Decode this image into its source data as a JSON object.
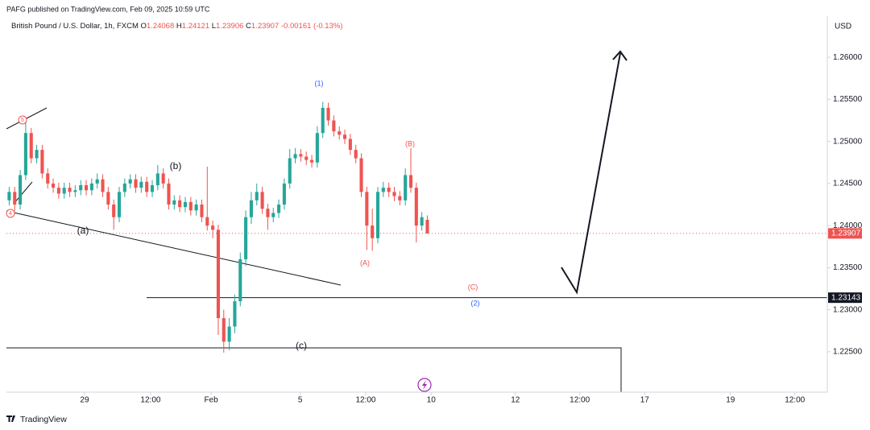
{
  "chart_data": {
    "type": "candlestick",
    "published": "PAFG published on TradingView.com, Feb 09, 2025 10:59 UTC",
    "symbol": "British Pound / U.S. Dollar, 1h, FXCM",
    "ohlc_letters": [
      "O",
      "H",
      "L",
      "C"
    ],
    "change_label": "-0.00161 (-0.13%)",
    "currency": "USD",
    "brand": "TradingView",
    "annotations": [
      "(1)",
      "(2)",
      "(A)",
      "(B)",
      "(C)",
      "(a)",
      "(b)",
      "(c)",
      "5",
      "4"
    ],
    "up_color": "#26a69a",
    "down_color": "#ef5350",
    "x": [
      0,
      1,
      2,
      3,
      4,
      5,
      6,
      7,
      8,
      9,
      10,
      11,
      12,
      13,
      14,
      15,
      16,
      17,
      18,
      19,
      20,
      21,
      22,
      23,
      24,
      25,
      26,
      27,
      28,
      29,
      30,
      31,
      32,
      33,
      34,
      35,
      36,
      37,
      38,
      39,
      40,
      41,
      42,
      43,
      44,
      45,
      46,
      47,
      48,
      49,
      50,
      51,
      52,
      53,
      54,
      55,
      56,
      57,
      58,
      59,
      60,
      61,
      62,
      63,
      64,
      65,
      66,
      67,
      68,
      69,
      70,
      71,
      72,
      73,
      74,
      75,
      76
    ],
    "open": [
      1.243,
      1.244,
      1.2425,
      1.246,
      1.251,
      1.248,
      1.249,
      1.2462,
      1.245,
      1.2445,
      1.2438,
      1.2445,
      1.244,
      1.2442,
      1.2448,
      1.2442,
      1.245,
      1.2455,
      1.244,
      1.2425,
      1.241,
      1.244,
      1.245,
      1.2455,
      1.2445,
      1.2452,
      1.244,
      1.2448,
      1.2462,
      1.245,
      1.2425,
      1.243,
      1.2422,
      1.2428,
      1.2418,
      1.2425,
      1.241,
      1.24,
      1.2395,
      1.229,
      1.2262,
      1.228,
      1.231,
      1.236,
      1.241,
      1.243,
      1.244,
      1.242,
      1.241,
      1.2415,
      1.2425,
      1.245,
      1.248,
      1.2485,
      1.2482,
      1.2478,
      1.2475,
      1.251,
      1.254,
      1.2525,
      1.2512,
      1.2508,
      1.2503,
      1.249,
      1.248,
      1.244,
      1.24,
      1.2385,
      1.244,
      1.2445,
      1.244,
      1.2435,
      1.243,
      1.246,
      1.2445,
      1.24,
      1.24068
    ],
    "high": [
      1.2446,
      1.2446,
      1.2466,
      1.2525,
      1.2516,
      1.2496,
      1.2496,
      1.2468,
      1.2456,
      1.2451,
      1.2451,
      1.2451,
      1.2448,
      1.2454,
      1.2454,
      1.2456,
      1.2462,
      1.2461,
      1.2446,
      1.2431,
      1.2446,
      1.2456,
      1.2461,
      1.2461,
      1.2458,
      1.2458,
      1.2454,
      1.2472,
      1.2468,
      1.2456,
      1.2436,
      1.2436,
      1.2434,
      1.2434,
      1.2431,
      1.2431,
      1.247,
      1.2406,
      1.2401,
      1.23,
      1.229,
      1.2318,
      1.2368,
      1.2418,
      1.244,
      1.245,
      1.2446,
      1.2426,
      1.2421,
      1.2431,
      1.2456,
      1.2491,
      1.2492,
      1.2491,
      1.2488,
      1.2484,
      1.2518,
      1.2547,
      1.2546,
      1.2531,
      1.2518,
      1.2514,
      1.2509,
      1.2496,
      1.2486,
      1.2446,
      1.242,
      1.2446,
      1.2452,
      1.2451,
      1.2446,
      1.2441,
      1.2468,
      1.2492,
      1.2451,
      1.2416,
      1.24121
    ],
    "low": [
      1.2424,
      1.2417,
      1.2419,
      1.2454,
      1.2474,
      1.2474,
      1.2456,
      1.2444,
      1.2439,
      1.2432,
      1.2432,
      1.2434,
      1.2434,
      1.2436,
      1.2436,
      1.2436,
      1.2444,
      1.2434,
      1.2419,
      1.2395,
      1.2404,
      1.2434,
      1.2444,
      1.2439,
      1.2439,
      1.2434,
      1.2434,
      1.2442,
      1.2444,
      1.2419,
      1.2419,
      1.2416,
      1.2416,
      1.2412,
      1.2412,
      1.2404,
      1.2394,
      1.2385,
      1.227,
      1.2249,
      1.2252,
      1.2272,
      1.2304,
      1.2352,
      1.2402,
      1.2424,
      1.2414,
      1.2395,
      1.2404,
      1.2409,
      1.2419,
      1.2444,
      1.2474,
      1.2476,
      1.2472,
      1.2469,
      1.2469,
      1.2504,
      1.2519,
      1.2506,
      1.2502,
      1.2497,
      1.2484,
      1.2474,
      1.2434,
      1.2371,
      1.237,
      1.2379,
      1.2434,
      1.2434,
      1.2429,
      1.2424,
      1.2424,
      1.2439,
      1.238,
      1.2394,
      1.23906
    ],
    "close": [
      1.244,
      1.2425,
      1.246,
      1.251,
      1.248,
      1.249,
      1.2462,
      1.245,
      1.2445,
      1.2438,
      1.2445,
      1.244,
      1.2442,
      1.2448,
      1.2442,
      1.245,
      1.2455,
      1.244,
      1.2425,
      1.241,
      1.244,
      1.245,
      1.2455,
      1.2445,
      1.2452,
      1.244,
      1.2448,
      1.2462,
      1.245,
      1.2425,
      1.243,
      1.2422,
      1.2428,
      1.2418,
      1.2425,
      1.241,
      1.24,
      1.2395,
      1.229,
      1.2262,
      1.228,
      1.231,
      1.236,
      1.241,
      1.243,
      1.244,
      1.242,
      1.241,
      1.2415,
      1.2425,
      1.245,
      1.248,
      1.2485,
      1.2482,
      1.2478,
      1.2475,
      1.251,
      1.254,
      1.2525,
      1.2512,
      1.2508,
      1.2503,
      1.249,
      1.248,
      1.244,
      1.24,
      1.2385,
      1.244,
      1.2445,
      1.244,
      1.2435,
      1.243,
      1.246,
      1.2445,
      1.24,
      1.241,
      1.23907
    ],
    "xlim": [
      -0.5,
      148.7
    ],
    "xticks": [
      {
        "value": 13.7,
        "label": "29"
      },
      {
        "value": 25.7,
        "label": "12:00"
      },
      {
        "value": 36.7,
        "label": "Feb"
      },
      {
        "value": 52.9,
        "label": "5"
      },
      {
        "value": 64.8,
        "label": "12:00"
      },
      {
        "value": 76.7,
        "label": "10"
      },
      {
        "value": 92.0,
        "label": "12"
      },
      {
        "value": 103.7,
        "label": "12:00"
      },
      {
        "value": 115.5,
        "label": "17"
      },
      {
        "value": 131.1,
        "label": "19"
      },
      {
        "value": 142.8,
        "label": "12:00"
      }
    ],
    "ylim": [
      1.2202,
      1.2649
    ],
    "yticks": [
      {
        "value": 1.225,
        "label": "1.22500"
      },
      {
        "value": 1.23,
        "label": "1.23000"
      },
      {
        "value": 1.235,
        "label": "1.23500"
      },
      {
        "value": 1.24,
        "label": "1.24000"
      },
      {
        "value": 1.245,
        "label": "1.24500"
      },
      {
        "value": 1.25,
        "label": "1.25000"
      },
      {
        "value": 1.255,
        "label": "1.25500"
      },
      {
        "value": 1.26,
        "label": "1.26000"
      }
    ],
    "price_line": 1.23143
  }
}
